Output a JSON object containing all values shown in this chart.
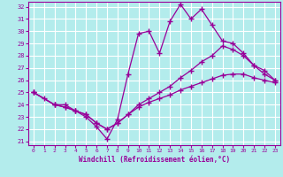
{
  "xlabel": "Windchill (Refroidissement éolien,°C)",
  "bg_color": "#b3ecec",
  "grid_color": "#cceeee",
  "line_color": "#990099",
  "xlim_min": -0.5,
  "xlim_max": 23.5,
  "ylim_min": 20.7,
  "ylim_max": 32.4,
  "yticks": [
    21,
    22,
    23,
    24,
    25,
    26,
    27,
    28,
    29,
    30,
    31,
    32
  ],
  "xticks": [
    0,
    1,
    2,
    3,
    4,
    5,
    6,
    7,
    8,
    9,
    10,
    11,
    12,
    13,
    14,
    15,
    16,
    17,
    18,
    19,
    20,
    21,
    22,
    23
  ],
  "line1_x": [
    0,
    1,
    2,
    3,
    4,
    5,
    6,
    7,
    8,
    9,
    10,
    11,
    12,
    13,
    14,
    15,
    16,
    17,
    18,
    19,
    20,
    21,
    22,
    23
  ],
  "line1_y": [
    25.0,
    24.5,
    24.0,
    24.0,
    23.5,
    23.0,
    22.2,
    21.2,
    22.8,
    26.5,
    29.8,
    30.0,
    28.2,
    30.8,
    32.2,
    31.0,
    31.8,
    30.5,
    29.2,
    29.0,
    28.2,
    27.2,
    26.5,
    26.0
  ],
  "line2_x": [
    0,
    2,
    3,
    4,
    5,
    6,
    7,
    8,
    9,
    10,
    11,
    12,
    13,
    14,
    15,
    16,
    17,
    18,
    19,
    20,
    21,
    22,
    23
  ],
  "line2_y": [
    25.0,
    24.0,
    23.8,
    23.5,
    23.2,
    22.5,
    22.0,
    22.5,
    23.2,
    24.0,
    24.5,
    25.0,
    25.5,
    26.2,
    26.8,
    27.5,
    28.0,
    28.8,
    28.5,
    28.0,
    27.2,
    26.8,
    26.0
  ],
  "line3_x": [
    0,
    2,
    3,
    4,
    5,
    6,
    7,
    8,
    9,
    10,
    11,
    12,
    13,
    14,
    15,
    16,
    17,
    18,
    19,
    20,
    21,
    22,
    23
  ],
  "line3_y": [
    25.0,
    24.0,
    23.8,
    23.5,
    23.2,
    22.5,
    22.0,
    22.5,
    23.2,
    23.8,
    24.2,
    24.5,
    24.8,
    25.2,
    25.5,
    25.8,
    26.1,
    26.4,
    26.5,
    26.5,
    26.2,
    26.0,
    25.8
  ]
}
